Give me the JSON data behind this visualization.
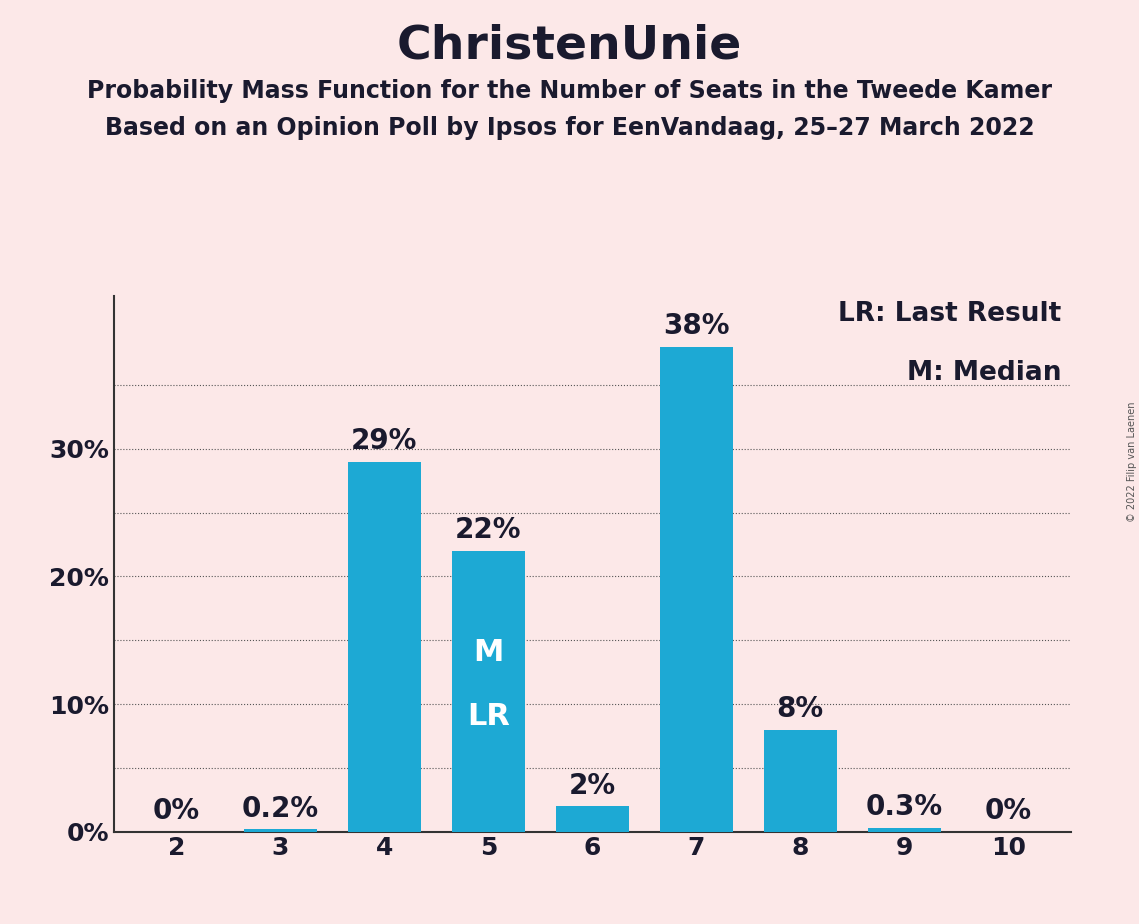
{
  "title": "ChristenUnie",
  "subtitle1": "Probability Mass Function for the Number of Seats in the Tweede Kamer",
  "subtitle2": "Based on an Opinion Poll by Ipsos for EenVandaag, 25–27 March 2022",
  "copyright": "© 2022 Filip van Laenen",
  "seats": [
    2,
    3,
    4,
    5,
    6,
    7,
    8,
    9,
    10
  ],
  "probabilities": [
    0.0,
    0.2,
    29.0,
    22.0,
    2.0,
    38.0,
    8.0,
    0.3,
    0.0
  ],
  "bar_color": "#1da9d4",
  "background_color": "#fce8e8",
  "text_color": "#1a1a2e",
  "label_color_inside": "#ffffff",
  "median_seat": 5,
  "last_result_seat": 5,
  "yticks": [
    0,
    10,
    20,
    30
  ],
  "ytick_labels": [
    "0%",
    "10%",
    "20%",
    "30%"
  ],
  "grid_lines": [
    5,
    10,
    15,
    20,
    25,
    30,
    35
  ],
  "ylim": [
    0,
    42
  ],
  "legend_lr": "LR: Last Result",
  "legend_m": "M: Median",
  "title_fontsize": 34,
  "subtitle_fontsize": 17,
  "bar_label_fontsize": 20,
  "axis_label_fontsize": 18,
  "legend_fontsize": 19
}
